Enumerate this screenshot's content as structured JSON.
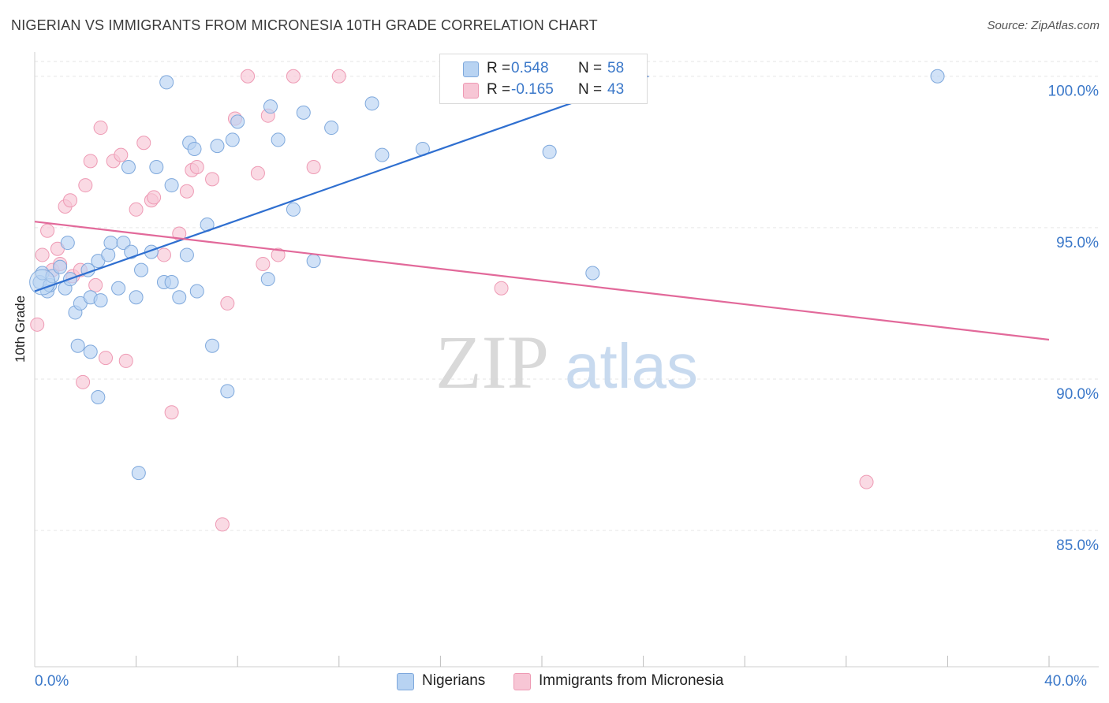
{
  "title": "NIGERIAN VS IMMIGRANTS FROM MICRONESIA 10TH GRADE CORRELATION CHART",
  "source": "Source: ZipAtlas.com",
  "watermark": {
    "zip": "ZIP",
    "atlas": "atlas"
  },
  "colors": {
    "blue_fill": "#b8d3f2",
    "blue_stroke": "#7ea8dc",
    "blue_line": "#2f6fd0",
    "pink_fill": "#f7c6d5",
    "pink_stroke": "#ee9ab4",
    "pink_line": "#e2699a",
    "tick_label": "#3b78c9",
    "grid": "#e6e6e6"
  },
  "legend_r": {
    "rows": [
      {
        "r_label": "R =",
        "r_value": "0.548",
        "n_label": "N =",
        "n_value": "58"
      },
      {
        "r_label": "R =",
        "r_value": "-0.165",
        "n_label": "N =",
        "n_value": "43"
      }
    ]
  },
  "legend_bottom": {
    "nigerians": "Nigerians",
    "micronesia": "Immigrants from Micronesia"
  },
  "chart_data": {
    "type": "scatter",
    "title": "NIGERIAN VS IMMIGRANTS FROM MICRONESIA 10TH GRADE CORRELATION CHART",
    "xlabel": "",
    "ylabel": "10th Grade",
    "xlim": [
      0,
      40
    ],
    "ylim": [
      80.5,
      100.8
    ],
    "x_tick_labels": [
      {
        "value": 0,
        "label": "0.0%"
      },
      {
        "value": 40,
        "label": "40.0%"
      }
    ],
    "x_minor_ticks": [
      4,
      8,
      12,
      16,
      20,
      24,
      28,
      32,
      36
    ],
    "y_ticks": [
      {
        "value": 100,
        "label": "100.0%"
      },
      {
        "value": 95,
        "label": "95.0%"
      },
      {
        "value": 90,
        "label": "90.0%"
      },
      {
        "value": 85,
        "label": "85.0%"
      }
    ],
    "grid": true,
    "series": [
      {
        "name": "Nigerians",
        "r": 0.548,
        "n": 58,
        "trend": {
          "x": [
            0,
            24.2
          ],
          "y": [
            92.9,
            100.0
          ]
        },
        "points": [
          [
            0.2,
            93.2
          ],
          [
            0.3,
            93.5
          ],
          [
            0.5,
            92.9
          ],
          [
            0.6,
            93.1
          ],
          [
            0.7,
            93.4
          ],
          [
            1.0,
            93.7
          ],
          [
            1.2,
            93.0
          ],
          [
            1.4,
            93.3
          ],
          [
            1.6,
            92.2
          ],
          [
            1.8,
            92.5
          ],
          [
            2.1,
            93.6
          ],
          [
            2.2,
            92.7
          ],
          [
            2.5,
            93.9
          ],
          [
            2.6,
            92.6
          ],
          [
            2.9,
            94.1
          ],
          [
            3.0,
            94.5
          ],
          [
            3.3,
            93.0
          ],
          [
            3.5,
            94.5
          ],
          [
            3.8,
            94.2
          ],
          [
            4.0,
            92.7
          ],
          [
            4.2,
            93.6
          ],
          [
            4.6,
            94.2
          ],
          [
            4.8,
            97.0
          ],
          [
            5.1,
            93.2
          ],
          [
            5.4,
            93.2
          ],
          [
            5.7,
            92.7
          ],
          [
            6.0,
            94.1
          ],
          [
            6.4,
            92.9
          ],
          [
            6.8,
            95.1
          ],
          [
            7.0,
            91.1
          ],
          [
            7.6,
            89.6
          ],
          [
            3.7,
            97.0
          ],
          [
            5.2,
            99.8
          ],
          [
            5.4,
            96.4
          ],
          [
            6.1,
            97.8
          ],
          [
            6.3,
            97.6
          ],
          [
            7.2,
            97.7
          ],
          [
            7.8,
            97.9
          ],
          [
            8.0,
            98.5
          ],
          [
            9.3,
            99.0
          ],
          [
            9.6,
            97.9
          ],
          [
            10.2,
            95.6
          ],
          [
            10.6,
            98.8
          ],
          [
            11.0,
            93.9
          ],
          [
            11.7,
            98.3
          ],
          [
            13.3,
            99.1
          ],
          [
            13.7,
            97.4
          ],
          [
            15.3,
            97.6
          ],
          [
            16.3,
            100.0
          ],
          [
            20.3,
            97.5
          ],
          [
            22.0,
            93.5
          ],
          [
            1.3,
            94.5
          ],
          [
            2.5,
            89.4
          ],
          [
            4.1,
            86.9
          ],
          [
            1.7,
            91.1
          ],
          [
            2.2,
            90.9
          ],
          [
            9.2,
            93.3
          ],
          [
            35.6,
            100.0
          ]
        ]
      },
      {
        "name": "Immigrants from Micronesia",
        "r": -0.165,
        "n": 43,
        "trend": {
          "x": [
            0,
            40
          ],
          "y": [
            95.2,
            91.3
          ]
        },
        "points": [
          [
            0.1,
            91.8
          ],
          [
            0.3,
            94.1
          ],
          [
            0.5,
            94.9
          ],
          [
            0.7,
            93.6
          ],
          [
            0.9,
            94.3
          ],
          [
            1.0,
            93.8
          ],
          [
            1.2,
            95.7
          ],
          [
            1.4,
            95.9
          ],
          [
            1.5,
            93.4
          ],
          [
            1.8,
            93.6
          ],
          [
            2.0,
            96.4
          ],
          [
            2.2,
            97.2
          ],
          [
            2.4,
            93.1
          ],
          [
            2.6,
            98.3
          ],
          [
            2.8,
            90.7
          ],
          [
            3.1,
            97.2
          ],
          [
            3.4,
            97.4
          ],
          [
            3.6,
            90.6
          ],
          [
            4.0,
            95.6
          ],
          [
            4.3,
            97.8
          ],
          [
            4.6,
            95.9
          ],
          [
            4.7,
            96.0
          ],
          [
            5.1,
            94.1
          ],
          [
            5.4,
            88.9
          ],
          [
            5.7,
            94.8
          ],
          [
            6.0,
            96.2
          ],
          [
            6.2,
            96.9
          ],
          [
            6.4,
            97.0
          ],
          [
            7.0,
            96.6
          ],
          [
            7.4,
            85.2
          ],
          [
            7.6,
            92.5
          ],
          [
            7.9,
            98.6
          ],
          [
            8.4,
            100.0
          ],
          [
            8.8,
            96.8
          ],
          [
            9.0,
            93.8
          ],
          [
            9.2,
            98.7
          ],
          [
            9.6,
            94.1
          ],
          [
            10.2,
            100.0
          ],
          [
            11.0,
            97.0
          ],
          [
            12.0,
            100.0
          ],
          [
            18.4,
            93.0
          ],
          [
            32.8,
            86.6
          ],
          [
            1.9,
            89.9
          ]
        ]
      }
    ]
  }
}
